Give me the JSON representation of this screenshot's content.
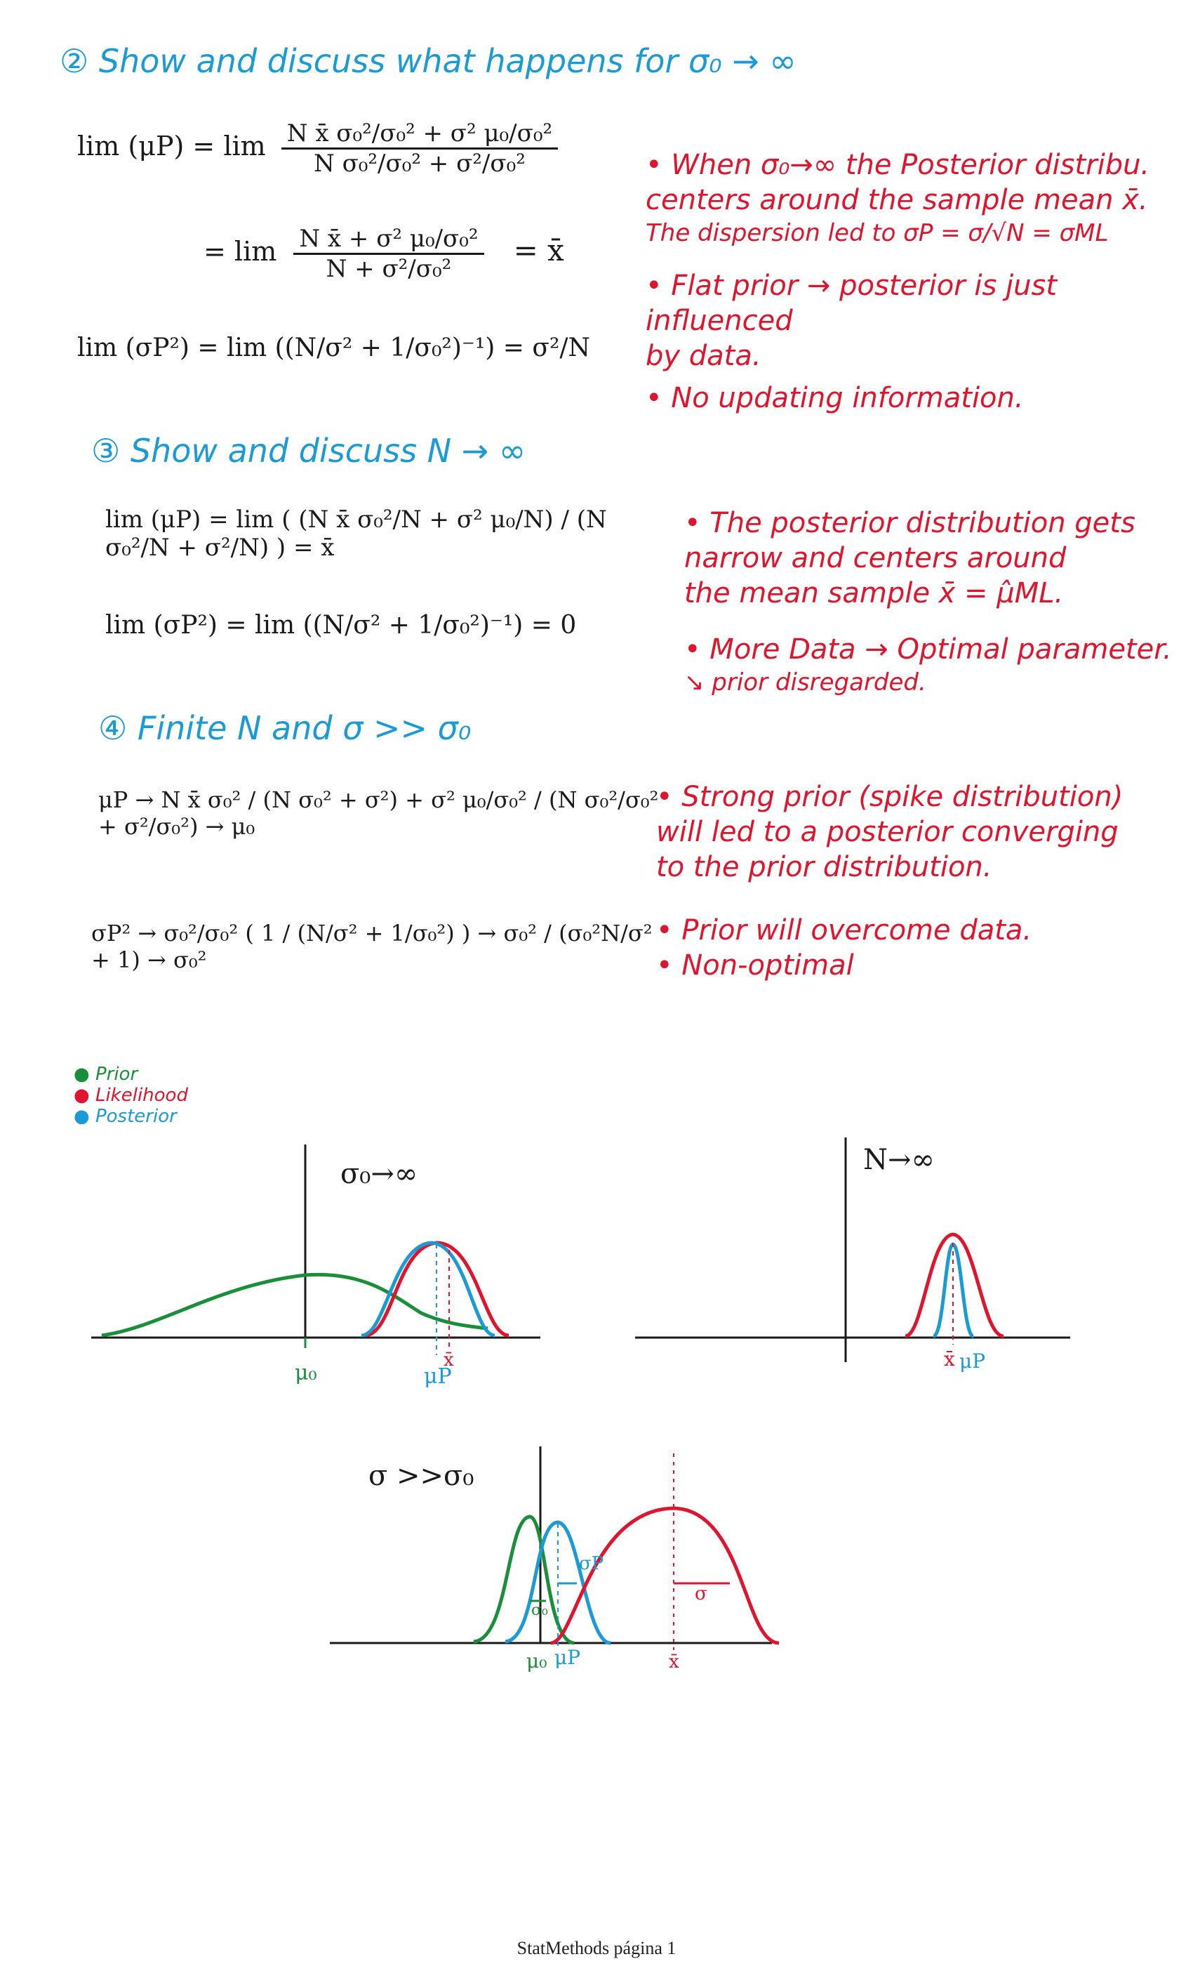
{
  "sections": {
    "s2": {
      "title": "② Show and discuss what happens for σ₀ → ∞"
    },
    "s3": {
      "title": "③ Show and discuss  N → ∞"
    },
    "s4": {
      "title": "④ Finite  N  and σ >> σ₀"
    }
  },
  "equations": {
    "s2_eq1_lhs": "lim (μP) = lim",
    "s2_eq1_num": "N x̄ σ₀²/σ₀² + σ² μ₀/σ₀²",
    "s2_eq1_den": "N σ₀²/σ₀² + σ²/σ₀²",
    "s2_eq2_num": "N x̄ + σ² μ₀/σ₀²",
    "s2_eq2_den": "N + σ²/σ₀²",
    "s2_eq2_res": "=  x̄",
    "s2_eq3": "lim (σP²) = lim ((N/σ² + 1/σ₀²)⁻¹) = σ²/N",
    "s3_eq1": "lim (μP) = lim ( (N x̄ σ₀²/N + σ² μ₀/N) / (N σ₀²/N + σ²/N) ) = x̄",
    "s3_eq2": "lim (σP²) = lim ((N/σ² + 1/σ₀²)⁻¹)  =  0",
    "s4_eq1": "μP →   N x̄ σ₀² / (N σ₀² + σ²)  +  σ² μ₀/σ₀² / (N σ₀²/σ₀² + σ²/σ₀²)  → μ₀",
    "s4_eq2": "σP² → σ₀²/σ₀² ( 1 / (N/σ² + 1/σ₀²) ) →  σ₀² / (σ₀²N/σ² + 1)  → σ₀²"
  },
  "notes": {
    "s2": [
      "• When σ₀→∞ the Posterior distribu.",
      "  centers around the sample mean x̄.",
      "  The dispersion led to σP = σ/√N = σML",
      "• Flat prior → posterior is just influenced",
      "                 by data.",
      "• No updating information."
    ],
    "s3": [
      "• The posterior distribution gets",
      "  narrow and centers around",
      "  the mean sample x̄ = μ̂ML.",
      "• More Data → Optimal parameter.",
      "                 ↘ prior disregarded."
    ],
    "s4": [
      "• Strong prior (spike distribution)",
      "  will led to a posterior converging",
      "  to the prior distribution.",
      "• Prior will overcome data.",
      "• Non-optimal"
    ]
  },
  "legend": [
    {
      "label": "Prior",
      "color": "#1a8f3a"
    },
    {
      "label": "Likelihood",
      "color": "#e0142c"
    },
    {
      "label": "Posterior",
      "color": "#1b9bd6"
    }
  ],
  "plots": {
    "p1": {
      "title": "σ₀→∞",
      "labels": [
        "μ₀",
        "μP",
        "x̄"
      ]
    },
    "p2": {
      "title": "N→∞",
      "labels": [
        "x̄",
        "μP"
      ]
    },
    "p3": {
      "title": "σ >>σ₀",
      "labels": [
        "μ₀",
        "μP",
        "x̄",
        "σP",
        "σ₀",
        "σ"
      ]
    }
  },
  "footer": "StatMethods página 1"
}
